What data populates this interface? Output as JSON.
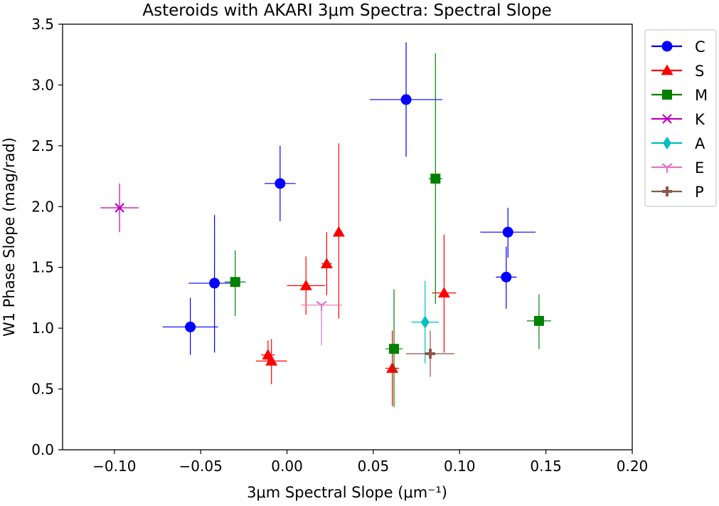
{
  "chart_data": {
    "type": "scatter",
    "title": "Asteroids with AKARI 3μm Spectra: Spectral Slope",
    "xlabel": "3μm Spectral Slope (μm⁻¹)",
    "ylabel": "W1 Phase Slope (mag/rad)",
    "xlim": [
      -0.13,
      0.2
    ],
    "ylim": [
      0.0,
      3.5
    ],
    "xticks": [
      -0.1,
      -0.05,
      0.0,
      0.05,
      0.1,
      0.15,
      0.2
    ],
    "xtick_labels": [
      "−0.10",
      "−0.05",
      "0.00",
      "0.05",
      "0.10",
      "0.15",
      "0.20"
    ],
    "yticks": [
      0.0,
      0.5,
      1.0,
      1.5,
      2.0,
      2.5,
      3.0,
      3.5
    ],
    "ytick_labels": [
      "0.0",
      "0.5",
      "1.0",
      "1.5",
      "2.0",
      "2.5",
      "3.0",
      "3.5"
    ],
    "grid": false,
    "legend_position": "outside-right-top",
    "series": [
      {
        "name": "C",
        "color": "#0000ff",
        "marker": "circle",
        "points": [
          {
            "x": -0.056,
            "y": 1.01,
            "xerr": 0.016,
            "yerr_lo": 0.23,
            "yerr_hi": 0.24
          },
          {
            "x": -0.042,
            "y": 1.37,
            "xerr": 0.015,
            "yerr_lo": 0.57,
            "yerr_hi": 0.56
          },
          {
            "x": -0.004,
            "y": 2.19,
            "xerr": 0.009,
            "yerr_lo": 0.31,
            "yerr_hi": 0.31
          },
          {
            "x": 0.069,
            "y": 2.88,
            "xerr": 0.021,
            "yerr_lo": 0.47,
            "yerr_hi": 0.47
          },
          {
            "x": 0.127,
            "y": 1.42,
            "xerr": 0.006,
            "yerr_lo": 0.26,
            "yerr_hi": 0.25
          },
          {
            "x": 0.128,
            "y": 1.79,
            "xerr": 0.016,
            "yerr_lo": 0.21,
            "yerr_hi": 0.2
          }
        ]
      },
      {
        "name": "S",
        "color": "#ff0000",
        "marker": "triangle",
        "points": [
          {
            "x": -0.011,
            "y": 0.78,
            "xerr": 0.004,
            "yerr_lo": 0.07,
            "yerr_hi": 0.12
          },
          {
            "x": -0.009,
            "y": 0.73,
            "xerr": 0.009,
            "yerr_lo": 0.19,
            "yerr_hi": 0.18
          },
          {
            "x": 0.011,
            "y": 1.35,
            "xerr": 0.011,
            "yerr_lo": 0.24,
            "yerr_hi": 0.24
          },
          {
            "x": 0.023,
            "y": 1.53,
            "xerr": 0.003,
            "yerr_lo": 0.26,
            "yerr_hi": 0.26
          },
          {
            "x": 0.03,
            "y": 1.79,
            "xerr": 0.002,
            "yerr_lo": 0.71,
            "yerr_hi": 0.73
          },
          {
            "x": 0.061,
            "y": 0.67,
            "xerr": 0.004,
            "yerr_lo": 0.31,
            "yerr_hi": 0.31
          },
          {
            "x": 0.091,
            "y": 1.29,
            "xerr": 0.007,
            "yerr_lo": 0.49,
            "yerr_hi": 0.48
          }
        ]
      },
      {
        "name": "M",
        "color": "#008000",
        "marker": "square",
        "points": [
          {
            "x": -0.03,
            "y": 1.38,
            "xerr": 0.006,
            "yerr_lo": 0.28,
            "yerr_hi": 0.26
          },
          {
            "x": 0.062,
            "y": 0.83,
            "xerr": 0.005,
            "yerr_lo": 0.48,
            "yerr_hi": 0.49
          },
          {
            "x": 0.086,
            "y": 2.23,
            "xerr": 0.004,
            "yerr_lo": 1.03,
            "yerr_hi": 1.03
          },
          {
            "x": 0.146,
            "y": 1.06,
            "xerr": 0.007,
            "yerr_lo": 0.23,
            "yerr_hi": 0.22
          }
        ]
      },
      {
        "name": "K",
        "color": "#bf00bf",
        "marker": "x",
        "points": [
          {
            "x": -0.097,
            "y": 1.99,
            "xerr": 0.011,
            "yerr_lo": 0.2,
            "yerr_hi": 0.2
          }
        ]
      },
      {
        "name": "A",
        "color": "#00bfbf",
        "marker": "diamond",
        "points": [
          {
            "x": 0.08,
            "y": 1.05,
            "xerr": 0.008,
            "yerr_lo": 0.34,
            "yerr_hi": 0.34
          }
        ]
      },
      {
        "name": "E",
        "color": "#e377c2",
        "marker": "tri_down",
        "points": [
          {
            "x": 0.02,
            "y": 1.19,
            "xerr": 0.012,
            "yerr_lo": 0.33,
            "yerr_hi": 0.0
          }
        ]
      },
      {
        "name": "P",
        "color": "#8c564b",
        "marker": "plus",
        "points": [
          {
            "x": 0.083,
            "y": 0.79,
            "xerr": 0.014,
            "yerr_lo": 0.19,
            "yerr_hi": 0.19
          }
        ]
      }
    ]
  }
}
